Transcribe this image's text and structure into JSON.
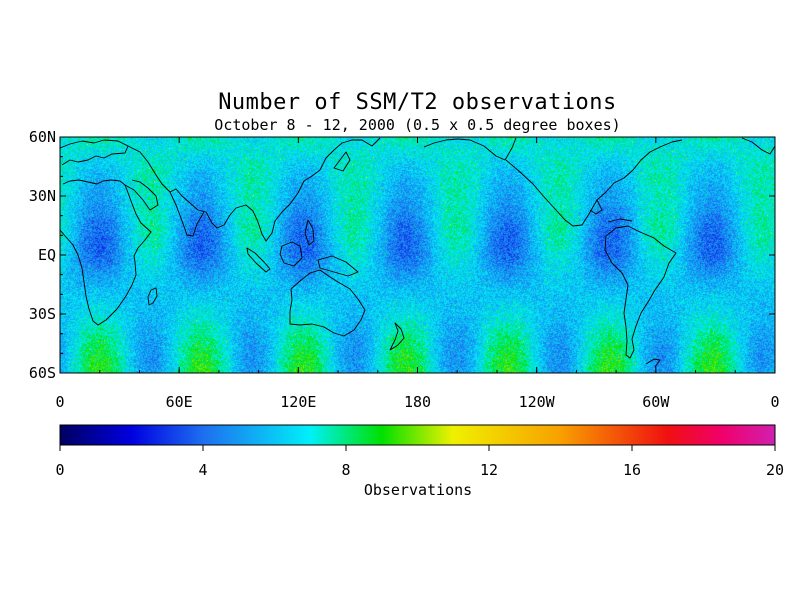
{
  "title": "Number of SSM/T2 observations",
  "subtitle": "October 8 - 12, 2000 (0.5 x 0.5 degree boxes)",
  "map": {
    "projection": "equirectangular",
    "lon_range": [
      0,
      360
    ],
    "lat_range": [
      -60,
      60
    ],
    "lat_ticks": [
      {
        "value": 60,
        "label": "60N"
      },
      {
        "value": 30,
        "label": "30N"
      },
      {
        "value": 0,
        "label": "EQ"
      },
      {
        "value": -30,
        "label": "30S"
      },
      {
        "value": -60,
        "label": "60S"
      }
    ],
    "lon_ticks": [
      {
        "value": 0,
        "label": "0"
      },
      {
        "value": 60,
        "label": "60E"
      },
      {
        "value": 120,
        "label": "120E"
      },
      {
        "value": 180,
        "label": "180"
      },
      {
        "value": 240,
        "label": "120W"
      },
      {
        "value": 300,
        "label": "60W"
      },
      {
        "value": 360,
        "label": "0"
      }
    ],
    "coastline_color": "#000000"
  },
  "chart_data": {
    "type": "heatmap",
    "variable": "Observations",
    "value_range": [
      0,
      20
    ],
    "typical_range": [
      3,
      8
    ],
    "pattern": "alternating satellite swath bands, higher counts between swaths, lowest counts in swath gaps near the equator",
    "colorbar": {
      "label": "Observations",
      "min": 0,
      "max": 20,
      "ticks": [
        0,
        4,
        8,
        12,
        16,
        20
      ],
      "tick_labels": [
        "0",
        "4",
        "8",
        "12",
        "16",
        "20"
      ],
      "colors": [
        {
          "value": 0,
          "color": "#000060"
        },
        {
          "value": 2,
          "color": "#0000e0"
        },
        {
          "value": 4,
          "color": "#1e6ef0"
        },
        {
          "value": 7,
          "color": "#00f0f8"
        },
        {
          "value": 9,
          "color": "#00e000"
        },
        {
          "value": 11,
          "color": "#f0f000"
        },
        {
          "value": 14,
          "color": "#f8a000"
        },
        {
          "value": 17,
          "color": "#f01010"
        },
        {
          "value": 18.5,
          "color": "#f0006a"
        },
        {
          "value": 20,
          "color": "#d020b0"
        }
      ]
    }
  }
}
